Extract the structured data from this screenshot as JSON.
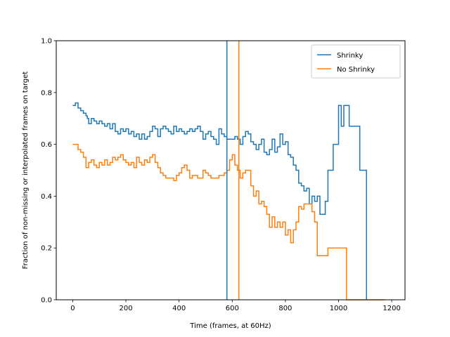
{
  "chart_data": {
    "type": "line",
    "xlabel": "Time (frames, at 60Hz)",
    "ylabel": "Fraction of non-missing or interpolated frames on target",
    "xlim": [
      -62,
      1250
    ],
    "ylim": [
      0.0,
      1.0
    ],
    "xticks": [
      0,
      200,
      400,
      600,
      800,
      1000,
      1200
    ],
    "yticks": [
      0.0,
      0.2,
      0.4,
      0.6,
      0.8,
      1.0
    ],
    "xtick_labels": [
      "0",
      "200",
      "400",
      "600",
      "800",
      "1000",
      "1200"
    ],
    "ytick_labels": [
      "0.0",
      "0.2",
      "0.4",
      "0.6",
      "0.8",
      "1.0"
    ],
    "grid": false,
    "legend_position": "top-right",
    "series": [
      {
        "name": "Shrinky",
        "color": "#1f77b4",
        "x": [
          0,
          10,
          20,
          30,
          40,
          50,
          55,
          60,
          70,
          80,
          90,
          100,
          110,
          120,
          130,
          140,
          150,
          160,
          170,
          180,
          190,
          200,
          210,
          220,
          230,
          240,
          250,
          260,
          270,
          280,
          290,
          300,
          310,
          320,
          330,
          340,
          350,
          360,
          370,
          380,
          390,
          400,
          410,
          420,
          430,
          440,
          450,
          460,
          470,
          480,
          490,
          500,
          510,
          520,
          530,
          540,
          550,
          560,
          570,
          580,
          590,
          600,
          610,
          620,
          630,
          640,
          650,
          660,
          670,
          680,
          690,
          700,
          710,
          720,
          730,
          740,
          750,
          760,
          770,
          780,
          790,
          800,
          810,
          820,
          830,
          840,
          850,
          860,
          870,
          880,
          890,
          900,
          910,
          920,
          930,
          940,
          950,
          960,
          970,
          980,
          990,
          1000,
          1010,
          1020,
          1030,
          1040,
          1050,
          1060,
          1070,
          1080,
          1090,
          1100,
          1105
        ],
        "y": [
          0.75,
          0.76,
          0.74,
          0.73,
          0.72,
          0.71,
          0.7,
          0.68,
          0.7,
          0.69,
          0.68,
          0.69,
          0.68,
          0.67,
          0.68,
          0.66,
          0.68,
          0.65,
          0.64,
          0.66,
          0.65,
          0.66,
          0.64,
          0.65,
          0.63,
          0.64,
          0.62,
          0.64,
          0.62,
          0.63,
          0.65,
          0.67,
          0.66,
          0.63,
          0.66,
          0.67,
          0.66,
          0.65,
          0.64,
          0.67,
          0.65,
          0.66,
          0.65,
          0.64,
          0.65,
          0.66,
          0.65,
          0.66,
          0.67,
          0.65,
          0.62,
          0.64,
          0.65,
          0.63,
          0.62,
          0.6,
          0.66,
          0.64,
          0.63,
          0.62,
          0.62,
          0.62,
          0.63,
          0.62,
          0.6,
          0.63,
          0.65,
          0.64,
          0.61,
          0.6,
          0.58,
          0.6,
          0.62,
          0.57,
          0.56,
          0.58,
          0.62,
          0.57,
          0.59,
          0.64,
          0.6,
          0.61,
          0.56,
          0.55,
          0.52,
          0.5,
          0.45,
          0.44,
          0.42,
          0.43,
          0.37,
          0.4,
          0.38,
          0.4,
          0.33,
          0.33,
          0.38,
          0.5,
          0.5,
          0.6,
          0.6,
          0.75,
          0.67,
          0.75,
          0.75,
          0.67,
          0.67,
          0.67,
          0.67,
          0.5,
          0.5,
          0.5,
          0.0
        ]
      },
      {
        "name": "No Shrinky",
        "color": "#ff7f0e",
        "x": [
          0,
          10,
          20,
          30,
          40,
          50,
          60,
          70,
          80,
          90,
          100,
          110,
          120,
          130,
          140,
          150,
          160,
          170,
          180,
          190,
          200,
          210,
          220,
          230,
          240,
          250,
          260,
          270,
          280,
          290,
          300,
          310,
          320,
          330,
          340,
          350,
          360,
          370,
          380,
          390,
          400,
          410,
          420,
          430,
          440,
          450,
          460,
          470,
          480,
          490,
          500,
          510,
          520,
          530,
          540,
          550,
          560,
          570,
          580,
          590,
          600,
          610,
          620,
          630,
          640,
          650,
          660,
          670,
          680,
          690,
          700,
          710,
          720,
          730,
          740,
          750,
          760,
          770,
          780,
          790,
          800,
          810,
          820,
          830,
          840,
          850,
          860,
          870,
          880,
          890,
          900,
          910,
          920,
          930,
          940,
          950,
          960,
          970,
          980,
          990,
          1000,
          1010,
          1020,
          1030,
          1040,
          1060,
          1080,
          1100,
          1120,
          1140,
          1160,
          1175
        ],
        "y": [
          0.6,
          0.6,
          0.58,
          0.57,
          0.55,
          0.51,
          0.53,
          0.54,
          0.52,
          0.51,
          0.53,
          0.52,
          0.54,
          0.52,
          0.53,
          0.55,
          0.54,
          0.55,
          0.56,
          0.54,
          0.53,
          0.52,
          0.53,
          0.51,
          0.55,
          0.53,
          0.52,
          0.54,
          0.53,
          0.55,
          0.56,
          0.53,
          0.51,
          0.49,
          0.48,
          0.47,
          0.47,
          0.47,
          0.46,
          0.48,
          0.49,
          0.51,
          0.52,
          0.5,
          0.47,
          0.48,
          0.48,
          0.47,
          0.47,
          0.5,
          0.49,
          0.48,
          0.47,
          0.47,
          0.47,
          0.48,
          0.48,
          0.49,
          0.5,
          0.54,
          0.56,
          0.52,
          0.5,
          0.47,
          0.49,
          0.5,
          0.5,
          0.44,
          0.4,
          0.42,
          0.37,
          0.38,
          0.36,
          0.33,
          0.28,
          0.32,
          0.28,
          0.3,
          0.28,
          0.3,
          0.25,
          0.27,
          0.22,
          0.27,
          0.3,
          0.36,
          0.35,
          0.37,
          0.37,
          0.37,
          0.34,
          0.3,
          0.17,
          0.17,
          0.17,
          0.17,
          0.2,
          0.2,
          0.2,
          0.2,
          0.2,
          0.2,
          0.2,
          0.0,
          0.0,
          0.0,
          0.0,
          0.0,
          0.0,
          0.0,
          0.0,
          0.0
        ]
      }
    ],
    "vertical_lines": [
      {
        "x": 580,
        "color": "#1f77b4"
      },
      {
        "x": 625,
        "color": "#ff7f0e"
      }
    ]
  }
}
